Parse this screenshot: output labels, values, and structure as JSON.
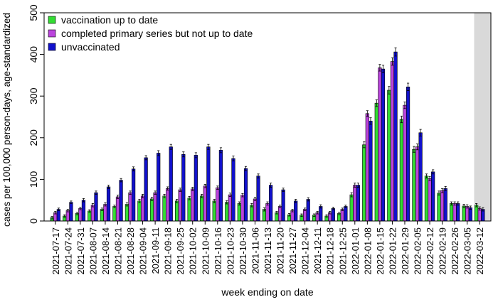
{
  "chart_data": {
    "type": "bar",
    "xlabel": "week ending on date",
    "ylabel": "cases per 100,000 person-days, age-standardized",
    "ylim": [
      0,
      500
    ],
    "yticks": [
      0,
      100,
      200,
      300,
      400,
      500
    ],
    "grid": false,
    "legend_position": "top-left",
    "shaded_region": {
      "from_category": "2022-03-12",
      "to": "end",
      "color": "#d9d9d9"
    },
    "categories": [
      "2021-07-17",
      "2021-07-24",
      "2021-07-31",
      "2021-08-07",
      "2021-08-14",
      "2021-08-21",
      "2021-08-28",
      "2021-09-04",
      "2021-09-11",
      "2021-09-18",
      "2021-09-25",
      "2021-10-02",
      "2021-10-09",
      "2021-10-16",
      "2021-10-23",
      "2021-10-30",
      "2021-11-06",
      "2021-11-13",
      "2021-11-20",
      "2021-11-27",
      "2021-12-04",
      "2021-12-11",
      "2021-12-18",
      "2021-12-25",
      "2022-01-01",
      "2022-01-08",
      "2022-01-15",
      "2022-01-22",
      "2022-01-29",
      "2022-02-05",
      "2022-02-12",
      "2022-02-19",
      "2022-02-26",
      "2022-03-05",
      "2022-03-12"
    ],
    "series": [
      {
        "name": "vaccination up to date",
        "color": "#33dd33",
        "values": [
          8,
          12,
          18,
          24,
          28,
          35,
          40,
          48,
          53,
          60,
          48,
          55,
          60,
          48,
          45,
          42,
          38,
          28,
          20,
          15,
          14,
          14,
          12,
          18,
          63,
          183,
          283,
          314,
          244,
          172,
          108,
          67,
          42,
          36,
          38
        ],
        "errors": [
          3,
          3,
          3,
          3,
          3,
          3,
          4,
          4,
          4,
          4,
          4,
          4,
          4,
          4,
          4,
          4,
          4,
          4,
          3,
          3,
          3,
          3,
          3,
          3,
          5,
          7,
          8,
          9,
          8,
          7,
          5,
          5,
          4,
          4,
          4
        ]
      },
      {
        "name": "completed primary series but not up to date",
        "color": "#bb44dd",
        "values": [
          20,
          25,
          30,
          38,
          40,
          58,
          68,
          60,
          68,
          78,
          75,
          77,
          84,
          80,
          63,
          62,
          53,
          42,
          35,
          25,
          28,
          20,
          20,
          28,
          86,
          258,
          368,
          383,
          278,
          178,
          102,
          73,
          42,
          35,
          30
        ],
        "errors": [
          3,
          3,
          3,
          4,
          4,
          4,
          4,
          4,
          4,
          4,
          4,
          4,
          4,
          4,
          4,
          4,
          4,
          4,
          3,
          3,
          3,
          3,
          3,
          3,
          5,
          7,
          8,
          9,
          8,
          7,
          5,
          5,
          4,
          4,
          4
        ]
      },
      {
        "name": "unvaccinated",
        "color": "#1111cc",
        "values": [
          28,
          45,
          50,
          68,
          82,
          98,
          125,
          152,
          163,
          178,
          160,
          158,
          178,
          170,
          150,
          126,
          108,
          86,
          75,
          48,
          52,
          35,
          30,
          35,
          86,
          240,
          365,
          406,
          322,
          212,
          118,
          78,
          42,
          32,
          28
        ],
        "errors": [
          3,
          3,
          4,
          4,
          4,
          4,
          5,
          5,
          6,
          6,
          6,
          6,
          6,
          6,
          6,
          5,
          5,
          5,
          4,
          4,
          4,
          4,
          3,
          3,
          5,
          8,
          9,
          10,
          9,
          8,
          5,
          5,
          4,
          4,
          4
        ]
      }
    ]
  }
}
